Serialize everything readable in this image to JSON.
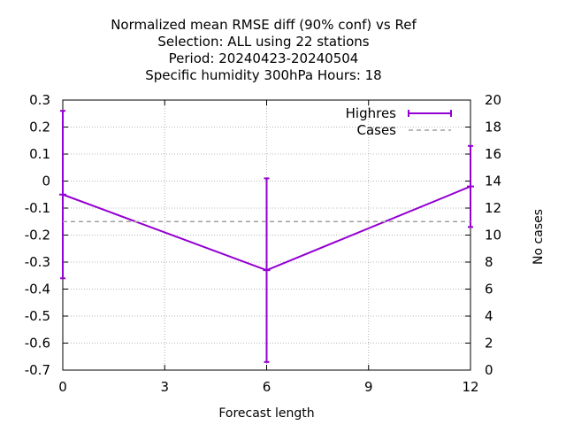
{
  "chart_data": {
    "type": "line",
    "title_lines": [
      "Normalized mean RMSE diff (90% conf) vs Ref",
      "Selection: ALL using    22 stations",
      "Period: 20240423-20240504",
      "Specific humidity 300hPa   Hours:  18"
    ],
    "xlabel": "Forecast length",
    "ylabel": "",
    "y2label": "No cases",
    "x_ticks": [
      0,
      3,
      6,
      9,
      12
    ],
    "xlim": [
      0,
      12
    ],
    "y_ticks": [
      0.3,
      0.2,
      0.1,
      0,
      -0.1,
      -0.2,
      -0.3,
      -0.4,
      -0.5,
      -0.6,
      -0.7
    ],
    "ylim": [
      -0.7,
      0.3
    ],
    "y2_ticks": [
      20,
      18,
      16,
      14,
      12,
      10,
      8,
      6,
      4,
      2,
      0
    ],
    "y2lim": [
      0,
      20
    ],
    "grid": true,
    "legend_position": "top-right",
    "series": [
      {
        "name": "Highres",
        "color": "#9400d3",
        "axis": "y",
        "style": "line-errorbars",
        "x": [
          0,
          6,
          12
        ],
        "y": [
          -0.05,
          -0.33,
          -0.02
        ],
        "err_low": [
          -0.36,
          -0.67,
          -0.17
        ],
        "err_high": [
          0.26,
          0.01,
          0.13
        ]
      },
      {
        "name": "Cases",
        "color": "#a0a0a0",
        "axis": "y2",
        "style": "dashed",
        "x": [
          0,
          12
        ],
        "y": [
          11,
          11
        ]
      }
    ]
  }
}
